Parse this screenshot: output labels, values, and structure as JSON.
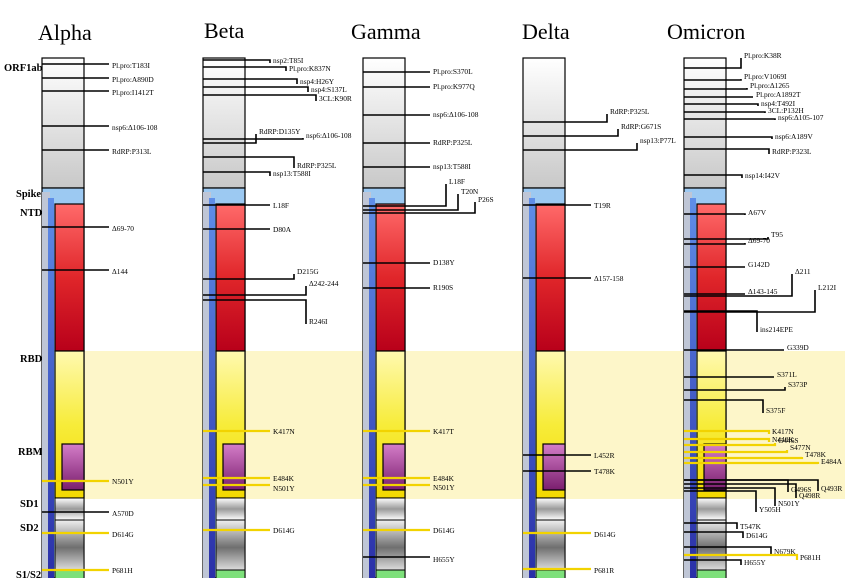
{
  "variants": [
    {
      "name": "Alpha",
      "mutations": [
        {
          "label": "Pl.pro:T183I",
          "color": "black"
        },
        {
          "label": "Pl.pro:A890D",
          "color": "black"
        },
        {
          "label": "Pl.pro:I1412T",
          "color": "black"
        },
        {
          "label": "nsp6:Δ106-108",
          "color": "black"
        },
        {
          "label": "RdRP:P313L",
          "color": "black"
        },
        {
          "label": "Δ69-70",
          "color": "black"
        },
        {
          "label": "Δ144",
          "color": "black"
        },
        {
          "label": "N501Y",
          "color": "yellow"
        },
        {
          "label": "A570D",
          "color": "black"
        },
        {
          "label": "D614G",
          "color": "yellow"
        },
        {
          "label": "P681H",
          "color": "yellow"
        }
      ]
    },
    {
      "name": "Beta",
      "mutations": [
        {
          "label": "nsp2:T85I",
          "color": "black"
        },
        {
          "label": "Pl.pro:K837N",
          "color": "black"
        },
        {
          "label": "nsp4:H26Y",
          "color": "black"
        },
        {
          "label": "nsp4:S137L",
          "color": "black"
        },
        {
          "label": "3CL:K90R",
          "color": "black"
        },
        {
          "label": "RdRP:D135Y",
          "color": "black"
        },
        {
          "label": "nsp6:Δ106-108",
          "color": "black"
        },
        {
          "label": "RdRP:P325L",
          "color": "black"
        },
        {
          "label": "nsp13:T588I",
          "color": "black"
        },
        {
          "label": "L18F",
          "color": "black"
        },
        {
          "label": "D80A",
          "color": "black"
        },
        {
          "label": "D215G",
          "color": "black"
        },
        {
          "label": "Δ242-244",
          "color": "black"
        },
        {
          "label": "R246I",
          "color": "black"
        },
        {
          "label": "K417N",
          "color": "yellow"
        },
        {
          "label": "E484K",
          "color": "yellow"
        },
        {
          "label": "N501Y",
          "color": "yellow"
        },
        {
          "label": "D614G",
          "color": "yellow"
        }
      ]
    },
    {
      "name": "Gamma",
      "mutations": [
        {
          "label": "Pl.pro:S370L",
          "color": "black"
        },
        {
          "label": "Pl.pro:K977Q",
          "color": "black"
        },
        {
          "label": "nsp6:Δ106-108",
          "color": "black"
        },
        {
          "label": "RdRP:P325L",
          "color": "black"
        },
        {
          "label": "nsp13:T588I",
          "color": "black"
        },
        {
          "label": "L18F",
          "color": "black"
        },
        {
          "label": "T20N",
          "color": "black"
        },
        {
          "label": "P26S",
          "color": "black"
        },
        {
          "label": "D138Y",
          "color": "black"
        },
        {
          "label": "R190S",
          "color": "black"
        },
        {
          "label": "K417T",
          "color": "yellow"
        },
        {
          "label": "E484K",
          "color": "yellow"
        },
        {
          "label": "N501Y",
          "color": "yellow"
        },
        {
          "label": "D614G",
          "color": "yellow"
        },
        {
          "label": "H655Y",
          "color": "black"
        }
      ]
    },
    {
      "name": "Delta",
      "mutations": [
        {
          "label": "RdRP:P325L",
          "color": "black"
        },
        {
          "label": "RdRP:G671S",
          "color": "black"
        },
        {
          "label": "nsp13:P77L",
          "color": "black"
        },
        {
          "label": "T19R",
          "color": "black"
        },
        {
          "label": "Δ157-158",
          "color": "black"
        },
        {
          "label": "L452R",
          "color": "black"
        },
        {
          "label": "T478K",
          "color": "black"
        },
        {
          "label": "D614G",
          "color": "yellow"
        },
        {
          "label": "P681R",
          "color": "yellow"
        }
      ]
    },
    {
      "name": "Omicron",
      "mutations": [
        {
          "label": "Pl.pro:K38R",
          "color": "black"
        },
        {
          "label": "Pl.pro:V1069I",
          "color": "black"
        },
        {
          "label": "Pl.pro:Δ1265",
          "color": "black"
        },
        {
          "label": "Pl.pro:A1892T",
          "color": "black"
        },
        {
          "label": "nsp4:T492I",
          "color": "black"
        },
        {
          "label": "3CL:P132H",
          "color": "black"
        },
        {
          "label": "nsp6:Δ105-107",
          "color": "black"
        },
        {
          "label": "nsp6:A189V",
          "color": "black"
        },
        {
          "label": "RdRP:P323L",
          "color": "black"
        },
        {
          "label": "nsp14:I42V",
          "color": "black"
        },
        {
          "label": "A67V",
          "color": "black"
        },
        {
          "label": "T95",
          "color": "black"
        },
        {
          "label": "Δ69-70",
          "color": "black"
        },
        {
          "label": "G142D",
          "color": "black"
        },
        {
          "label": "Δ211",
          "color": "black"
        },
        {
          "label": "Δ143-145",
          "color": "black"
        },
        {
          "label": "L212I",
          "color": "black"
        },
        {
          "label": "ins214EPE",
          "color": "black"
        },
        {
          "label": "G339D",
          "color": "black"
        },
        {
          "label": "S371L",
          "color": "black"
        },
        {
          "label": "S373P",
          "color": "black"
        },
        {
          "label": "S375F",
          "color": "black"
        },
        {
          "label": "K417N",
          "color": "yellow"
        },
        {
          "label": "N440K",
          "color": "yellow"
        },
        {
          "label": "G446S",
          "color": "yellow"
        },
        {
          "label": "S477N",
          "color": "yellow"
        },
        {
          "label": "T478K",
          "color": "yellow"
        },
        {
          "label": "E484A",
          "color": "yellow"
        },
        {
          "label": "Q493R",
          "color": "black"
        },
        {
          "label": "G496S",
          "color": "black"
        },
        {
          "label": "Q498R",
          "color": "black"
        },
        {
          "label": "N501Y",
          "color": "black"
        },
        {
          "label": "Y505H",
          "color": "black"
        },
        {
          "label": "T547K",
          "color": "black"
        },
        {
          "label": "D614G",
          "color": "black"
        },
        {
          "label": "N679K",
          "color": "black"
        },
        {
          "label": "H655Y",
          "color": "black"
        },
        {
          "label": "P681H",
          "color": "yellow"
        }
      ]
    }
  ],
  "regions": [
    {
      "label": "ORF1ab"
    },
    {
      "label": "Spike"
    },
    {
      "label": "NTD"
    },
    {
      "label": "RBD"
    },
    {
      "label": "RBM"
    },
    {
      "label": "SD1"
    },
    {
      "label": "SD2"
    },
    {
      "label": "S1/S2"
    }
  ],
  "colors": {
    "orf_gray": "#d8d8d8",
    "spike_blue": "#9cc9f2",
    "blue_rail": "#3140c8",
    "ntd_red": "#e0262a",
    "rbd_yellow": "#f7ec3a",
    "rbm_magenta": "#b0489c",
    "s1s2_green": "#7de07a",
    "rbd_band": "#fdf6c9",
    "yellow_line": "#f2d300"
  }
}
